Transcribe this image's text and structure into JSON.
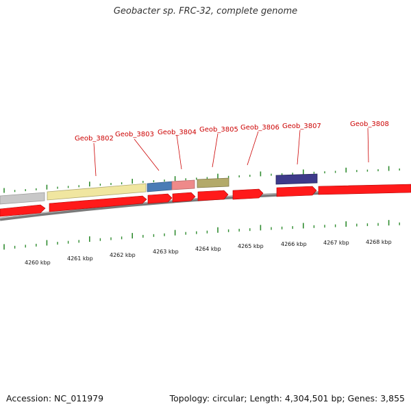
{
  "title": "Geobacter sp. FRC-32, complete genome",
  "footer": {
    "accession": "Accession: NC_011979",
    "summary": "Topology: circular; Length: 4,304,501 bp; Genes: 3,855"
  },
  "colors": {
    "cds": "#ff0000",
    "locus_label": "#cc0000",
    "ticks": "#2e8b2e",
    "backbone": "#808080"
  },
  "gene_labels": [
    {
      "id": "Geob_3802",
      "text": "Geob_3802"
    },
    {
      "id": "Geob_3803",
      "text": "Geob_3803"
    },
    {
      "id": "Geob_3804",
      "text": "Geob_3804"
    },
    {
      "id": "Geob_3805",
      "text": "Geob_3805"
    },
    {
      "id": "Geob_3806",
      "text": "Geob_3806"
    },
    {
      "id": "Geob_3807",
      "text": "Geob_3807"
    },
    {
      "id": "Geob_3808",
      "text": "Geob_3808"
    }
  ],
  "kbp_labels": [
    "4260 kbp",
    "4261 kbp",
    "4262 kbp",
    "4263 kbp",
    "4264 kbp",
    "4265 kbp",
    "4266 kbp",
    "4267 kbp",
    "4268 kbp"
  ]
}
